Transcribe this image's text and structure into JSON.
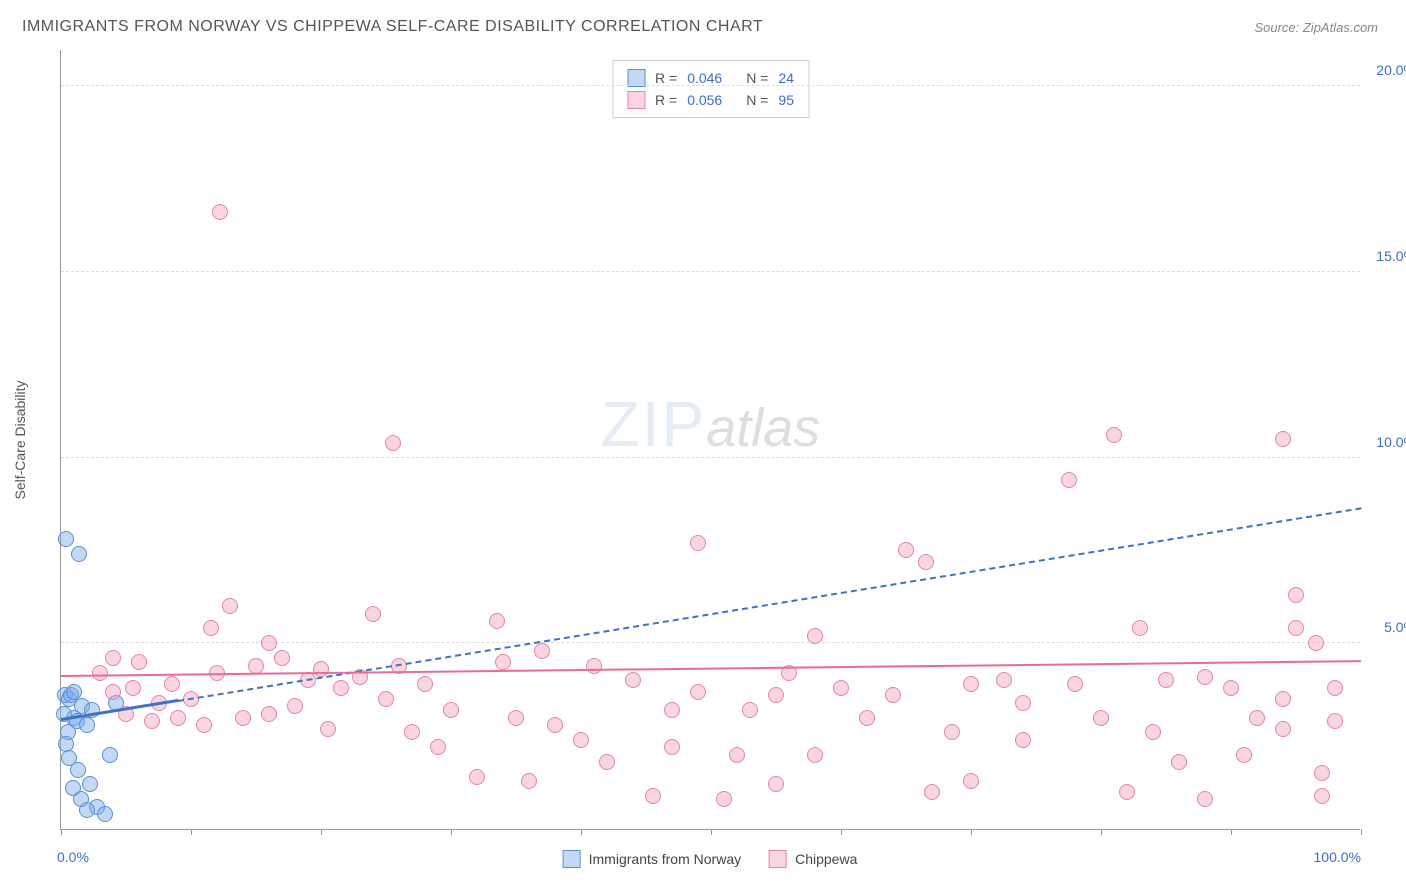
{
  "title": "IMMIGRANTS FROM NORWAY VS CHIPPEWA SELF-CARE DISABILITY CORRELATION CHART",
  "source": "Source: ZipAtlas.com",
  "watermark_zip": "ZIP",
  "watermark_atlas": "atlas",
  "y_axis_title": "Self-Care Disability",
  "chart": {
    "type": "scatter",
    "background_color": "#ffffff",
    "grid_color": "#dddddd",
    "axis_color": "#999999",
    "xlim": [
      0,
      100
    ],
    "ylim": [
      0,
      21
    ],
    "x_ticks": [
      0,
      10,
      20,
      30,
      40,
      50,
      60,
      70,
      80,
      90,
      100
    ],
    "x_tick_labels_shown": {
      "0": "0.0%",
      "100": "100.0%"
    },
    "y_ticks": [
      5,
      10,
      15,
      20
    ],
    "y_tick_labels": {
      "5": "5.0%",
      "10": "10.0%",
      "15": "15.0%",
      "20": "20.0%"
    },
    "marker_radius": 8,
    "marker_border_width": 1.5,
    "series": [
      {
        "name": "Immigrants from Norway",
        "legend_label": "Immigrants from Norway",
        "fill_color": "rgba(120, 170, 230, 0.45)",
        "stroke_color": "#5b8fd6",
        "trend_color": "#3e72c4",
        "trend_style": "solid_then_dashed",
        "trend_solid_end_x": 9,
        "trend": {
          "x1": 0,
          "y1": 2.9,
          "x2": 100,
          "y2": 8.6
        },
        "R": "0.046",
        "N": "24",
        "points": [
          [
            0.4,
            7.8
          ],
          [
            1.4,
            7.4
          ],
          [
            0.3,
            3.6
          ],
          [
            0.6,
            3.5
          ],
          [
            0.2,
            3.1
          ],
          [
            0.8,
            3.6
          ],
          [
            1.0,
            3.0
          ],
          [
            0.5,
            2.6
          ],
          [
            0.4,
            2.3
          ],
          [
            1.2,
            2.9
          ],
          [
            1.6,
            3.3
          ],
          [
            1.0,
            3.7
          ],
          [
            2.4,
            3.2
          ],
          [
            2.0,
            2.8
          ],
          [
            0.6,
            1.9
          ],
          [
            1.3,
            1.6
          ],
          [
            2.2,
            1.2
          ],
          [
            2.8,
            0.6
          ],
          [
            3.4,
            0.4
          ],
          [
            2.0,
            0.5
          ],
          [
            1.5,
            0.8
          ],
          [
            0.9,
            1.1
          ],
          [
            3.8,
            2.0
          ],
          [
            4.2,
            3.4
          ]
        ]
      },
      {
        "name": "Chippewa",
        "legend_label": "Chippewa",
        "fill_color": "rgba(240, 150, 180, 0.4)",
        "stroke_color": "#e386a6",
        "trend_color": "#e86ba0",
        "trend_style": "solid",
        "trend": {
          "x1": 0,
          "y1": 4.1,
          "x2": 100,
          "y2": 4.5
        },
        "R": "0.056",
        "N": "95",
        "points": [
          [
            12.2,
            16.6
          ],
          [
            25.5,
            10.4
          ],
          [
            81.0,
            10.6
          ],
          [
            94.0,
            10.5
          ],
          [
            77.5,
            9.4
          ],
          [
            49.0,
            7.7
          ],
          [
            65.0,
            7.5
          ],
          [
            66.5,
            7.2
          ],
          [
            95.0,
            6.3
          ],
          [
            58.0,
            5.2
          ],
          [
            33.5,
            5.6
          ],
          [
            24.0,
            5.8
          ],
          [
            11.5,
            5.4
          ],
          [
            13.0,
            6.0
          ],
          [
            16.0,
            5.0
          ],
          [
            37.0,
            4.8
          ],
          [
            44.0,
            4.0
          ],
          [
            47.0,
            3.2
          ],
          [
            49.0,
            3.7
          ],
          [
            55.0,
            3.6
          ],
          [
            60.0,
            3.8
          ],
          [
            62.0,
            3.0
          ],
          [
            64.0,
            3.6
          ],
          [
            70.0,
            3.9
          ],
          [
            72.5,
            4.0
          ],
          [
            74.0,
            3.4
          ],
          [
            78.0,
            3.9
          ],
          [
            80.0,
            3.0
          ],
          [
            83.0,
            5.4
          ],
          [
            85.0,
            4.0
          ],
          [
            88.0,
            4.1
          ],
          [
            90.0,
            3.8
          ],
          [
            92.0,
            3.0
          ],
          [
            94.0,
            3.5
          ],
          [
            94.0,
            2.7
          ],
          [
            95.0,
            5.4
          ],
          [
            96.5,
            5.0
          ],
          [
            97.0,
            1.5
          ],
          [
            97.0,
            0.9
          ],
          [
            98.0,
            3.8
          ],
          [
            98.0,
            2.9
          ],
          [
            3.0,
            4.2
          ],
          [
            4.0,
            3.7
          ],
          [
            4.0,
            4.6
          ],
          [
            5.0,
            3.1
          ],
          [
            5.5,
            3.8
          ],
          [
            6.0,
            4.5
          ],
          [
            7.0,
            2.9
          ],
          [
            7.5,
            3.4
          ],
          [
            8.5,
            3.9
          ],
          [
            9.0,
            3.0
          ],
          [
            10.0,
            3.5
          ],
          [
            11.0,
            2.8
          ],
          [
            12.0,
            4.2
          ],
          [
            14.0,
            3.0
          ],
          [
            15.0,
            4.4
          ],
          [
            16.0,
            3.1
          ],
          [
            17.0,
            4.6
          ],
          [
            18.0,
            3.3
          ],
          [
            19.0,
            4.0
          ],
          [
            20.0,
            4.3
          ],
          [
            20.5,
            2.7
          ],
          [
            21.5,
            3.8
          ],
          [
            23.0,
            4.1
          ],
          [
            25.0,
            3.5
          ],
          [
            26.0,
            4.4
          ],
          [
            27.0,
            2.6
          ],
          [
            28.0,
            3.9
          ],
          [
            29.0,
            2.2
          ],
          [
            30.0,
            3.2
          ],
          [
            32.0,
            1.4
          ],
          [
            35.0,
            3.0
          ],
          [
            36.0,
            1.3
          ],
          [
            38.0,
            2.8
          ],
          [
            40.0,
            2.4
          ],
          [
            42.0,
            1.8
          ],
          [
            45.5,
            0.9
          ],
          [
            47.0,
            2.2
          ],
          [
            51.0,
            0.8
          ],
          [
            52.0,
            2.0
          ],
          [
            53.0,
            3.2
          ],
          [
            55.0,
            1.2
          ],
          [
            58.0,
            2.0
          ],
          [
            67.0,
            1.0
          ],
          [
            68.5,
            2.6
          ],
          [
            70.0,
            1.3
          ],
          [
            74.0,
            2.4
          ],
          [
            82.0,
            1.0
          ],
          [
            84.0,
            2.6
          ],
          [
            86.0,
            1.8
          ],
          [
            88.0,
            0.8
          ],
          [
            91.0,
            2.0
          ],
          [
            56.0,
            4.2
          ],
          [
            41.0,
            4.4
          ],
          [
            34.0,
            4.5
          ]
        ]
      }
    ]
  },
  "legend_top": {
    "r_label": "R =",
    "n_label": "N ="
  }
}
